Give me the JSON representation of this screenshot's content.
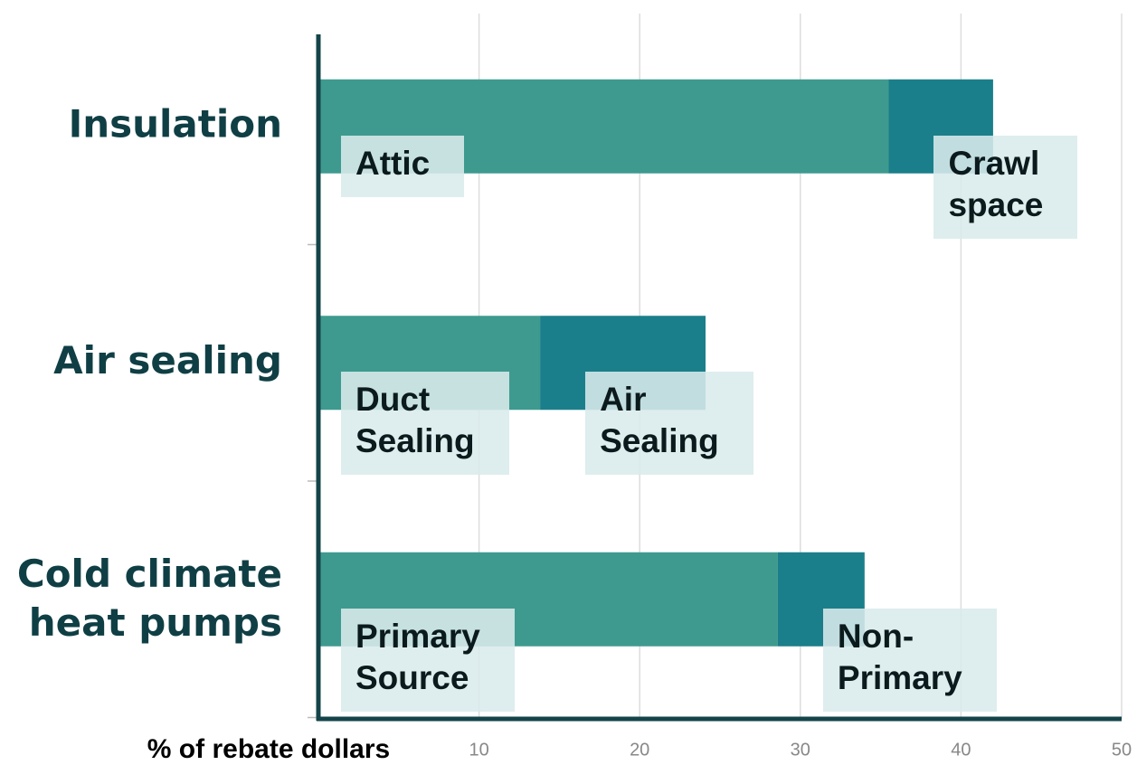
{
  "chart_data": {
    "type": "stacked-bar-horizontal",
    "categories": [
      "Insulation",
      "Air sealing",
      "Cold climate heat pumps"
    ],
    "series": [
      {
        "color": "#3e9a8f",
        "values": [
          35.5,
          13.8,
          28.6
        ],
        "labels": [
          "Attic",
          "Duct Sealing",
          "Primary Source"
        ]
      },
      {
        "color": "#1a7f8a",
        "values": [
          6.5,
          10.3,
          5.4
        ],
        "labels": [
          "Crawl space",
          "Air Sealing",
          "Non-Primary"
        ]
      }
    ],
    "xlabel": "% of rebate dollars",
    "xlim": [
      0,
      50
    ],
    "xticks": [
      10,
      20,
      30,
      40,
      50
    ],
    "grid": true
  }
}
